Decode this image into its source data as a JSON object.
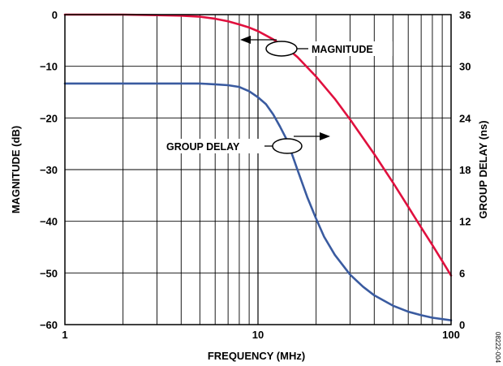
{
  "chart_data": {
    "type": "line",
    "xlabel": "FREQUENCY (MHz)",
    "ylabel": "MAGNITUDE (dB)",
    "y2label": "GROUP DELAY (ns)",
    "xscale": "log",
    "xlim": [
      1,
      100
    ],
    "ylim": [
      -60,
      0
    ],
    "y2lim": [
      0,
      36
    ],
    "grid": true,
    "x_ticks": [
      "1",
      "10",
      "100"
    ],
    "y_ticks": [
      "0",
      "−10",
      "−20",
      "−30",
      "−40",
      "−50",
      "−60"
    ],
    "y2_ticks": [
      "36",
      "30",
      "24",
      "18",
      "12",
      "6",
      "0"
    ],
    "series": [
      {
        "name": "MAGNITUDE",
        "axis": "left",
        "color": "#e0103e",
        "x": [
          1,
          2,
          3,
          4,
          5,
          6,
          7,
          8,
          9,
          10,
          12,
          14,
          16,
          20,
          25,
          30,
          40,
          50,
          60,
          70,
          80,
          90,
          100
        ],
        "y": [
          0,
          0,
          -0.1,
          -0.2,
          -0.4,
          -0.8,
          -1.3,
          -1.9,
          -2.5,
          -3.2,
          -4.8,
          -6.4,
          -8.2,
          -12,
          -16.3,
          -20.3,
          -27,
          -32.5,
          -37.2,
          -41.2,
          -44.6,
          -47.7,
          -50.5
        ]
      },
      {
        "name": "GROUP DELAY",
        "axis": "right",
        "color": "#3a5ba0",
        "x": [
          1,
          2,
          3,
          4,
          5,
          6,
          7,
          8,
          9,
          10,
          11,
          12,
          13,
          14,
          15,
          16,
          18,
          20,
          22,
          25,
          30,
          35,
          40,
          50,
          60,
          70,
          80,
          100
        ],
        "y": [
          28,
          28,
          28,
          28,
          28,
          27.9,
          27.8,
          27.6,
          27.1,
          26.4,
          25.6,
          24.4,
          23,
          21.6,
          19.8,
          18,
          14.8,
          12.3,
          10.2,
          8.1,
          5.8,
          4.4,
          3.4,
          2.2,
          1.5,
          1.1,
          0.8,
          0.5
        ]
      }
    ],
    "annotations": [
      "MAGNITUDE",
      "GROUP DELAY"
    ],
    "figure_id": "08222-004"
  }
}
